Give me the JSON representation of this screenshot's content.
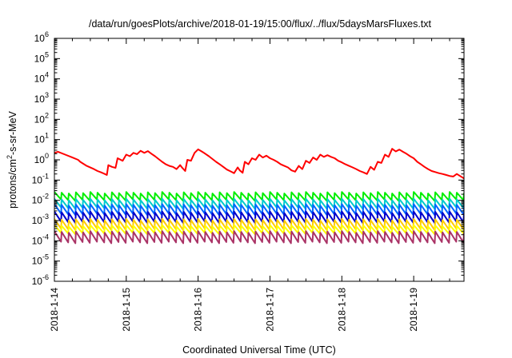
{
  "chart_data": {
    "type": "line",
    "title": "/data/run/goesPlots/archive/2018-01-19/15:00/flux/../flux/5daysMarsFluxes.txt",
    "xlabel": "Coordinated Universal Time (UTC)",
    "ylabel_parts": [
      "protons/cm",
      "2",
      "-s-sr-MeV"
    ],
    "y_scale": "log",
    "ylim": [
      1e-06,
      1000000.0
    ],
    "y_ticks": [
      {
        "base": "10",
        "exp": "6"
      },
      {
        "base": "10",
        "exp": "5"
      },
      {
        "base": "10",
        "exp": "4"
      },
      {
        "base": "10",
        "exp": "3"
      },
      {
        "base": "10",
        "exp": "2"
      },
      {
        "base": "10",
        "exp": "1"
      },
      {
        "base": "10",
        "exp": "0"
      },
      {
        "base": "10",
        "exp": "-1"
      },
      {
        "base": "10",
        "exp": "-2"
      },
      {
        "base": "10",
        "exp": "-3"
      },
      {
        "base": "10",
        "exp": "-4"
      },
      {
        "base": "10",
        "exp": "-5"
      },
      {
        "base": "10",
        "exp": "-6"
      }
    ],
    "x_ticks": [
      "2018-1-14",
      "2018-1-15",
      "2018-1-16",
      "2018-1-17",
      "2018-1-18",
      "2018-1-19"
    ],
    "x_range_days": [
      0,
      5.7
    ],
    "grid": false,
    "legend": "none",
    "series_colors": [
      "#ff0000",
      "#00ee00",
      "#00cccc",
      "#0066ff",
      "#0000cc",
      "#ffcc00",
      "#ffff00",
      "#aa3366"
    ],
    "series": [
      {
        "color": "#ff0000",
        "points": [
          [
            0,
            2.2
          ],
          [
            0.05,
            2.5
          ],
          [
            0.15,
            1.8
          ],
          [
            0.25,
            1.3
          ],
          [
            0.33,
            1.0
          ],
          [
            0.36,
            0.8
          ],
          [
            0.45,
            0.5
          ],
          [
            0.55,
            0.35
          ],
          [
            0.6,
            0.28
          ],
          [
            0.65,
            0.24
          ],
          [
            0.7,
            0.2
          ],
          [
            0.73,
            0.18
          ],
          [
            0.75,
            0.55
          ],
          [
            0.8,
            0.45
          ],
          [
            0.85,
            0.4
          ],
          [
            0.88,
            1.2
          ],
          [
            0.95,
            0.9
          ],
          [
            1.0,
            1.8
          ],
          [
            1.05,
            1.5
          ],
          [
            1.1,
            2.2
          ],
          [
            1.15,
            1.9
          ],
          [
            1.2,
            2.8
          ],
          [
            1.25,
            2.2
          ],
          [
            1.3,
            2.7
          ],
          [
            1.35,
            2.0
          ],
          [
            1.4,
            1.5
          ],
          [
            1.45,
            1.1
          ],
          [
            1.5,
            0.8
          ],
          [
            1.55,
            0.6
          ],
          [
            1.6,
            0.5
          ],
          [
            1.65,
            0.45
          ],
          [
            1.7,
            0.35
          ],
          [
            1.75,
            0.55
          ],
          [
            1.78,
            0.4
          ],
          [
            1.82,
            0.28
          ],
          [
            1.85,
            1.0
          ],
          [
            1.9,
            0.9
          ],
          [
            1.95,
            2.2
          ],
          [
            2.0,
            3.3
          ],
          [
            2.05,
            2.6
          ],
          [
            2.1,
            2.0
          ],
          [
            2.15,
            1.5
          ],
          [
            2.2,
            1.1
          ],
          [
            2.25,
            0.8
          ],
          [
            2.3,
            0.6
          ],
          [
            2.35,
            0.45
          ],
          [
            2.4,
            0.33
          ],
          [
            2.45,
            0.27
          ],
          [
            2.5,
            0.22
          ],
          [
            2.55,
            0.42
          ],
          [
            2.58,
            0.3
          ],
          [
            2.62,
            0.23
          ],
          [
            2.65,
            0.8
          ],
          [
            2.7,
            0.6
          ],
          [
            2.75,
            1.2
          ],
          [
            2.8,
            1.0
          ],
          [
            2.85,
            1.8
          ],
          [
            2.9,
            1.3
          ],
          [
            2.95,
            1.6
          ],
          [
            3.0,
            1.2
          ],
          [
            3.05,
            1.0
          ],
          [
            3.1,
            0.8
          ],
          [
            3.15,
            0.6
          ],
          [
            3.2,
            0.5
          ],
          [
            3.25,
            0.42
          ],
          [
            3.3,
            0.3
          ],
          [
            3.35,
            0.26
          ],
          [
            3.4,
            0.5
          ],
          [
            3.45,
            0.35
          ],
          [
            3.5,
            0.9
          ],
          [
            3.55,
            0.7
          ],
          [
            3.6,
            1.3
          ],
          [
            3.65,
            1.0
          ],
          [
            3.7,
            1.8
          ],
          [
            3.75,
            1.4
          ],
          [
            3.8,
            1.7
          ],
          [
            3.85,
            1.4
          ],
          [
            3.9,
            1.2
          ],
          [
            3.95,
            0.9
          ],
          [
            4.0,
            0.75
          ],
          [
            4.05,
            0.6
          ],
          [
            4.1,
            0.5
          ],
          [
            4.15,
            0.42
          ],
          [
            4.2,
            0.35
          ],
          [
            4.25,
            0.28
          ],
          [
            4.3,
            0.24
          ],
          [
            4.35,
            0.2
          ],
          [
            4.4,
            0.45
          ],
          [
            4.45,
            0.32
          ],
          [
            4.5,
            0.8
          ],
          [
            4.55,
            0.7
          ],
          [
            4.6,
            1.8
          ],
          [
            4.65,
            1.4
          ],
          [
            4.7,
            3.5
          ],
          [
            4.75,
            2.6
          ],
          [
            4.8,
            3.2
          ],
          [
            4.85,
            2.5
          ],
          [
            4.9,
            2.0
          ],
          [
            4.95,
            1.5
          ],
          [
            5.0,
            1.2
          ],
          [
            5.05,
            0.8
          ],
          [
            5.1,
            0.6
          ],
          [
            5.15,
            0.45
          ],
          [
            5.2,
            0.35
          ],
          [
            5.25,
            0.28
          ],
          [
            5.3,
            0.25
          ],
          [
            5.35,
            0.22
          ],
          [
            5.4,
            0.2
          ],
          [
            5.45,
            0.18
          ],
          [
            5.5,
            0.16
          ],
          [
            5.55,
            0.15
          ],
          [
            5.6,
            0.2
          ],
          [
            5.7,
            0.12
          ]
        ]
      },
      {
        "color": "#00ee00",
        "sawtooth": {
          "start": 0,
          "end": 5.7,
          "period": 0.1,
          "hi": 0.026,
          "lo": 0.011,
          "drift": -0.2
        }
      },
      {
        "color": "#00cccc",
        "sawtooth": {
          "start": 0,
          "end": 5.7,
          "period": 0.1,
          "hi": 0.012,
          "lo": 0.0045,
          "drift": -0.2
        }
      },
      {
        "color": "#0066ff",
        "sawtooth": {
          "start": 0,
          "end": 5.7,
          "period": 0.1,
          "hi": 0.0065,
          "lo": 0.0022,
          "drift": -0.2
        }
      },
      {
        "color": "#0000cc",
        "sawtooth": {
          "start": 0,
          "end": 5.7,
          "period": 0.1,
          "hi": 0.0028,
          "lo": 0.0009,
          "drift": -0.2
        }
      },
      {
        "color": "#ffcc00",
        "sawtooth": {
          "start": 0,
          "end": 5.7,
          "period": 0.1,
          "hi": 0.0012,
          "lo": 0.0004,
          "drift": -0.2
        }
      },
      {
        "color": "#ffff00",
        "sawtooth": {
          "start": 0,
          "end": 5.7,
          "period": 0.1,
          "hi": 0.0006,
          "lo": 0.00025,
          "drift": -0.2
        }
      },
      {
        "color": "#aa3366",
        "sawtooth": {
          "start": 0,
          "end": 5.7,
          "period": 0.1,
          "hi": 0.0003,
          "lo": 9e-05,
          "drift": -0.2
        }
      }
    ]
  }
}
